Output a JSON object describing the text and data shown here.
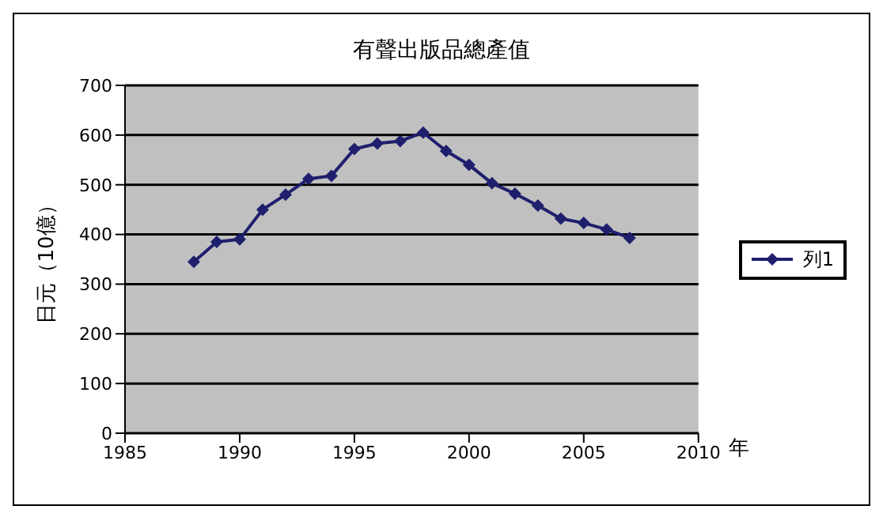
{
  "chart_data": {
    "type": "line",
    "title": "有聲出版品總產值",
    "xlabel": "年",
    "ylabel": "日元（10億）",
    "x": [
      1988,
      1989,
      1990,
      1991,
      1992,
      1993,
      1994,
      1995,
      1996,
      1997,
      1998,
      1999,
      2000,
      2001,
      2002,
      2003,
      2004,
      2005,
      2006,
      2007
    ],
    "series": [
      {
        "name": "列1",
        "color": "#1f1f6e",
        "values": [
          345,
          385,
          390,
          450,
          480,
          512,
          518,
          572,
          583,
          588,
          605,
          568,
          540,
          503,
          482,
          458,
          432,
          423,
          410,
          393
        ]
      }
    ],
    "xlim": [
      1985,
      2010
    ],
    "xticks": [
      1985,
      1990,
      1995,
      2000,
      2005,
      2010
    ],
    "ylim": [
      0,
      700
    ],
    "yticks": [
      0,
      100,
      200,
      300,
      400,
      500,
      600,
      700
    ],
    "grid": "y",
    "legend": "right",
    "marker": "diamond",
    "line_style": "solid"
  }
}
